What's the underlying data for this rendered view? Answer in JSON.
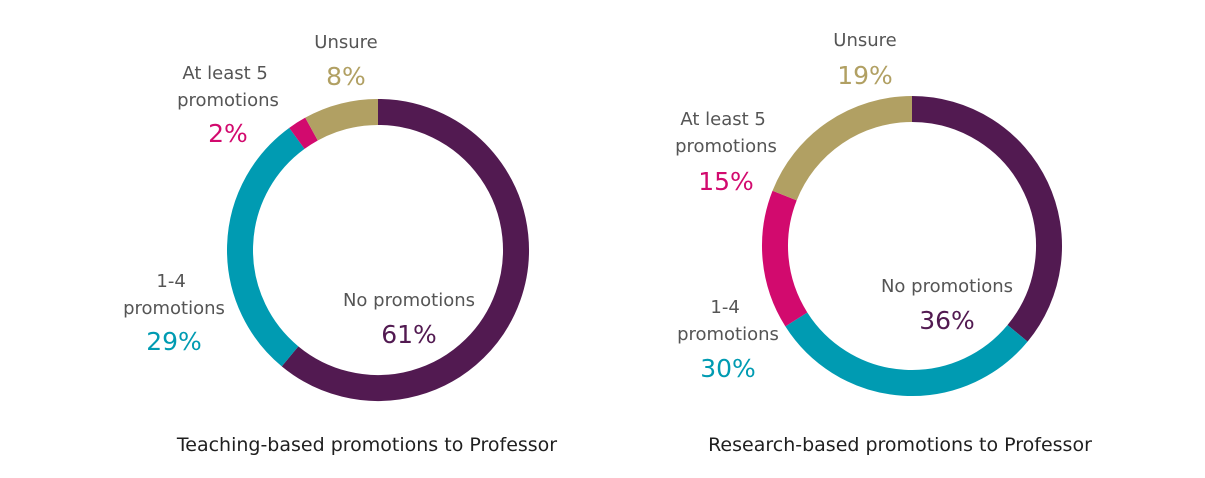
{
  "chart_data": [
    {
      "type": "pie",
      "title": "Teaching-based promotions to Professor",
      "slices": [
        {
          "label": "No promotions",
          "value": 61,
          "display": "61%",
          "color": "#521a51"
        },
        {
          "label": "1-4 promotions",
          "value": 29,
          "display": "29%",
          "color": "#009bb2"
        },
        {
          "label": "At least 5 promotions",
          "value": 2,
          "display": "2%",
          "color": "#d20a6e"
        },
        {
          "label": "Unsure",
          "value": 8,
          "display": "8%",
          "color": "#b1a063"
        }
      ]
    },
    {
      "type": "pie",
      "title": "Research-based promotions to Professor",
      "slices": [
        {
          "label": "No promotions",
          "value": 36,
          "display": "36%",
          "color": "#521a51"
        },
        {
          "label": "1-4 promotions",
          "value": 30,
          "display": "30%",
          "color": "#009bb2"
        },
        {
          "label": "At least 5 promotions",
          "value": 15,
          "display": "15%",
          "color": "#d20a6e"
        },
        {
          "label": "Unsure",
          "value": 19,
          "display": "19%",
          "color": "#b1a063"
        }
      ]
    }
  ]
}
